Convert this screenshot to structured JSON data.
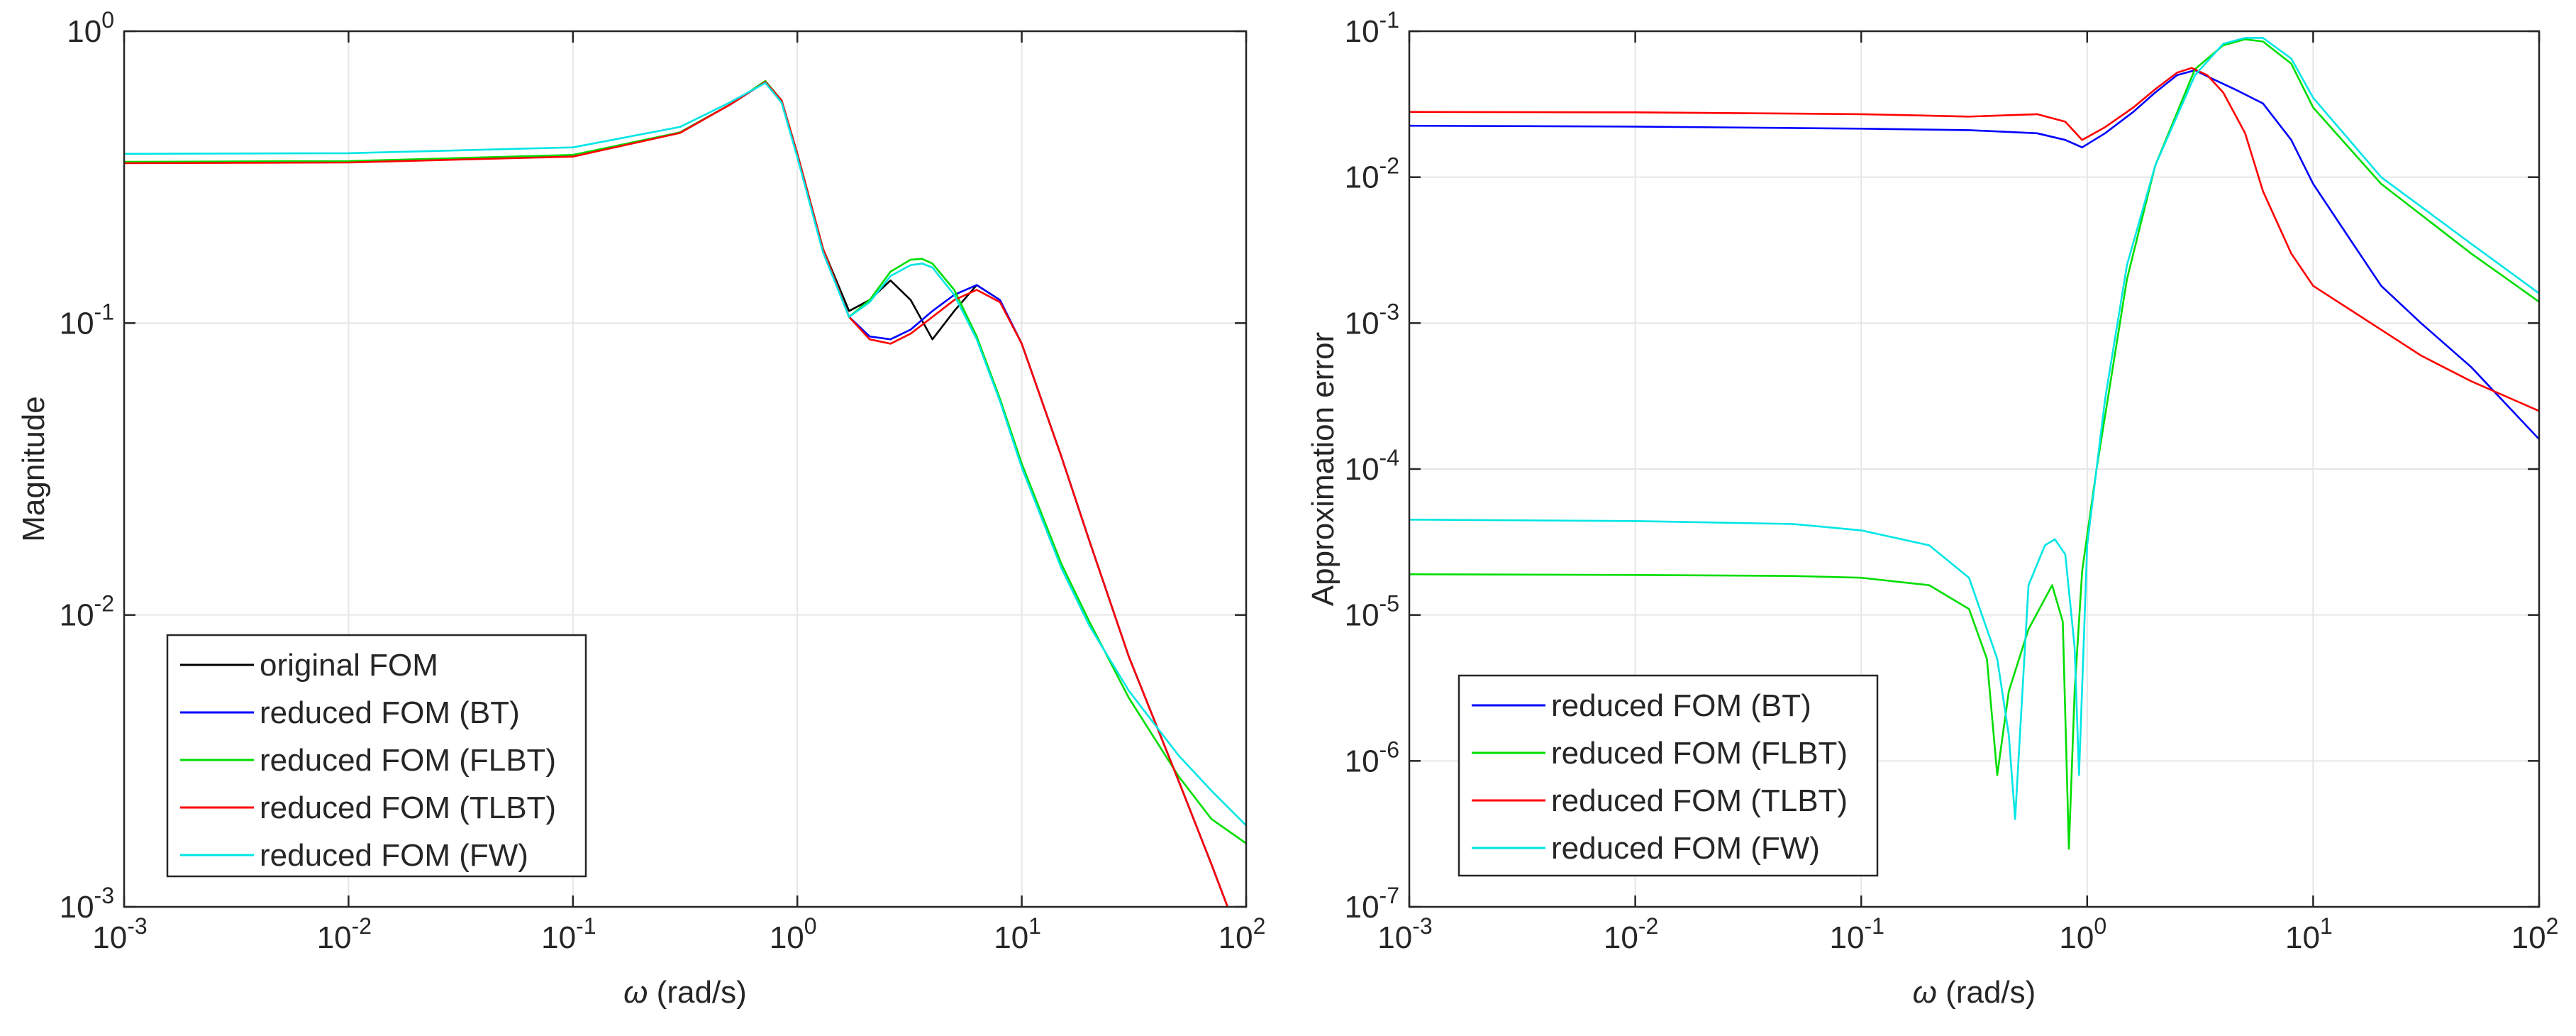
{
  "chart_data": [
    {
      "type": "line",
      "xscale": "log",
      "yscale": "log",
      "xlim": [
        0.001,
        100
      ],
      "ylim": [
        0.001,
        1
      ],
      "xlabel": "ω (rad/s)",
      "ylabel": "Magnitude",
      "x_ticks": [
        0.001,
        0.01,
        0.1,
        1,
        10,
        100
      ],
      "y_ticks": [
        0.001,
        0.01,
        0.1,
        1
      ],
      "x_tick_labels": [
        [
          "10",
          "-3"
        ],
        [
          "10",
          "-2"
        ],
        [
          "10",
          "-1"
        ],
        [
          "10",
          "0"
        ],
        [
          "10",
          "1"
        ],
        [
          "10",
          "2"
        ]
      ],
      "y_tick_labels": [
        [
          "10",
          "-3"
        ],
        [
          "10",
          "-2"
        ],
        [
          "10",
          "-1"
        ],
        [
          "10",
          "0"
        ]
      ],
      "grid": true,
      "legend_position": "bottom-left",
      "series": [
        {
          "name": "original FOM",
          "color": "#000000",
          "x": [
            0.001,
            0.01,
            0.1,
            0.3,
            0.5,
            0.72,
            0.85,
            1.0,
            1.3,
            1.7,
            2.1,
            2.6,
            3.2,
            4.0,
            5.0,
            6.3,
            8.0,
            10,
            15,
            20,
            30,
            50,
            70,
            100
          ],
          "y": [
            0.355,
            0.357,
            0.375,
            0.45,
            0.56,
            0.67,
            0.58,
            0.38,
            0.18,
            0.11,
            0.12,
            0.14,
            0.12,
            0.088,
            0.11,
            0.135,
            0.12,
            0.085,
            0.035,
            0.018,
            0.0072,
            0.0027,
            0.0014,
            0.00068
          ]
        },
        {
          "name": "reduced FOM (BT)",
          "color": "#0000ff",
          "x": [
            0.001,
            0.01,
            0.1,
            0.3,
            0.5,
            0.72,
            0.85,
            1.0,
            1.3,
            1.7,
            2.1,
            2.6,
            3.2,
            4.0,
            5.0,
            6.3,
            8.0,
            10,
            15,
            20,
            30,
            50,
            70,
            100
          ],
          "y": [
            0.355,
            0.357,
            0.375,
            0.45,
            0.56,
            0.67,
            0.58,
            0.38,
            0.18,
            0.105,
            0.09,
            0.088,
            0.095,
            0.11,
            0.125,
            0.135,
            0.12,
            0.085,
            0.035,
            0.018,
            0.0072,
            0.0027,
            0.0014,
            0.00068
          ]
        },
        {
          "name": "reduced FOM (FLBT)",
          "color": "#00dd00",
          "x": [
            0.001,
            0.01,
            0.1,
            0.3,
            0.5,
            0.72,
            0.85,
            1.0,
            1.3,
            1.7,
            2.1,
            2.6,
            3.2,
            3.6,
            4.0,
            5.0,
            6.3,
            8.0,
            10,
            15,
            20,
            30,
            50,
            70,
            100
          ],
          "y": [
            0.357,
            0.359,
            0.377,
            0.45,
            0.56,
            0.675,
            0.58,
            0.38,
            0.18,
            0.105,
            0.12,
            0.15,
            0.165,
            0.166,
            0.16,
            0.13,
            0.09,
            0.055,
            0.033,
            0.015,
            0.0095,
            0.0052,
            0.0028,
            0.002,
            0.00165
          ]
        },
        {
          "name": "reduced FOM (TLBT)",
          "color": "#ff0000",
          "x": [
            0.001,
            0.01,
            0.1,
            0.3,
            0.5,
            0.72,
            0.85,
            1.0,
            1.3,
            1.7,
            2.1,
            2.6,
            3.2,
            4.0,
            5.0,
            6.3,
            8.0,
            10,
            15,
            20,
            30,
            50,
            70,
            100
          ],
          "y": [
            0.353,
            0.355,
            0.372,
            0.448,
            0.56,
            0.67,
            0.58,
            0.38,
            0.18,
            0.105,
            0.088,
            0.085,
            0.092,
            0.105,
            0.12,
            0.13,
            0.118,
            0.085,
            0.035,
            0.018,
            0.0072,
            0.0027,
            0.0014,
            0.00068
          ]
        },
        {
          "name": "reduced FOM (FW)",
          "color": "#00e5e5",
          "x": [
            0.001,
            0.01,
            0.1,
            0.3,
            0.5,
            0.72,
            0.85,
            1.0,
            1.3,
            1.7,
            2.1,
            2.6,
            3.2,
            3.6,
            4.0,
            5.0,
            6.3,
            8.0,
            10,
            15,
            20,
            30,
            50,
            70,
            100
          ],
          "y": [
            0.38,
            0.382,
            0.4,
            0.47,
            0.57,
            0.665,
            0.57,
            0.37,
            0.175,
            0.105,
            0.118,
            0.145,
            0.158,
            0.16,
            0.155,
            0.125,
            0.088,
            0.054,
            0.032,
            0.0145,
            0.0092,
            0.0055,
            0.0033,
            0.0025,
            0.0019
          ]
        }
      ]
    },
    {
      "type": "line",
      "xscale": "log",
      "yscale": "log",
      "xlim": [
        0.001,
        100
      ],
      "ylim": [
        1e-07,
        0.1
      ],
      "xlabel": "ω (rad/s)",
      "ylabel": "Approximation error",
      "x_ticks": [
        0.001,
        0.01,
        0.1,
        1,
        10,
        100
      ],
      "y_ticks": [
        1e-07,
        1e-06,
        1e-05,
        0.0001,
        0.001,
        0.01,
        0.1
      ],
      "x_tick_labels": [
        [
          "10",
          "-3"
        ],
        [
          "10",
          "-2"
        ],
        [
          "10",
          "-1"
        ],
        [
          "10",
          "0"
        ],
        [
          "10",
          "1"
        ],
        [
          "10",
          "2"
        ]
      ],
      "y_tick_labels": [
        [
          "10",
          "-7"
        ],
        [
          "10",
          "-6"
        ],
        [
          "10",
          "-5"
        ],
        [
          "10",
          "-4"
        ],
        [
          "10",
          "-3"
        ],
        [
          "10",
          "-2"
        ],
        [
          "10",
          "-1"
        ]
      ],
      "grid": true,
      "legend_position": "bottom-left",
      "series": [
        {
          "name": "reduced FOM (BT)",
          "color": "#0000ff",
          "x": [
            0.001,
            0.01,
            0.1,
            0.3,
            0.6,
            0.8,
            0.95,
            1.2,
            1.6,
            2.0,
            2.5,
            3.0,
            3.5,
            4.5,
            6.0,
            8.0,
            10,
            15,
            20,
            30,
            50,
            100
          ],
          "y": [
            0.0225,
            0.0222,
            0.0215,
            0.021,
            0.02,
            0.018,
            0.016,
            0.02,
            0.028,
            0.038,
            0.05,
            0.054,
            0.048,
            0.04,
            0.032,
            0.018,
            0.009,
            0.0035,
            0.0018,
            0.001,
            0.0005,
            0.00016
          ]
        },
        {
          "name": "reduced FOM (FLBT)",
          "color": "#00dd00",
          "x": [
            0.001,
            0.01,
            0.05,
            0.1,
            0.2,
            0.3,
            0.36,
            0.4,
            0.45,
            0.55,
            0.7,
            0.78,
            0.83,
            0.88,
            0.95,
            1.1,
            1.5,
            2.0,
            3.0,
            4.0,
            5.0,
            6.0,
            8.0,
            10,
            20,
            50,
            100
          ],
          "y": [
            1.9e-05,
            1.88e-05,
            1.85e-05,
            1.8e-05,
            1.6e-05,
            1.1e-05,
            5e-06,
            8e-07,
            3e-06,
            8e-06,
            1.6e-05,
            9e-06,
            2.5e-07,
            3e-06,
            2e-05,
            0.0001,
            0.002,
            0.012,
            0.055,
            0.08,
            0.088,
            0.085,
            0.06,
            0.03,
            0.009,
            0.003,
            0.0014
          ]
        },
        {
          "name": "reduced FOM (TLBT)",
          "color": "#ff0000",
          "x": [
            0.001,
            0.01,
            0.1,
            0.3,
            0.6,
            0.8,
            0.95,
            1.2,
            1.6,
            2.0,
            2.5,
            2.9,
            3.4,
            4.0,
            5.0,
            6.0,
            8.0,
            10,
            15,
            20,
            30,
            50,
            100
          ],
          "y": [
            0.028,
            0.0278,
            0.027,
            0.026,
            0.027,
            0.024,
            0.018,
            0.022,
            0.03,
            0.04,
            0.052,
            0.056,
            0.05,
            0.038,
            0.02,
            0.008,
            0.003,
            0.0018,
            0.0012,
            0.0009,
            0.0006,
            0.0004,
            0.00025
          ]
        },
        {
          "name": "reduced FOM (FW)",
          "color": "#00e5e5",
          "x": [
            0.001,
            0.01,
            0.05,
            0.1,
            0.2,
            0.3,
            0.4,
            0.45,
            0.48,
            0.55,
            0.65,
            0.72,
            0.8,
            0.88,
            0.92,
            1.0,
            1.2,
            1.5,
            2.0,
            3.0,
            4.0,
            5.0,
            6.0,
            8.0,
            10,
            20,
            50,
            100
          ],
          "y": [
            4.5e-05,
            4.4e-05,
            4.2e-05,
            3.8e-05,
            3e-05,
            1.8e-05,
            5e-06,
            1.5e-06,
            4e-07,
            1.6e-05,
            3e-05,
            3.3e-05,
            2.6e-05,
            6e-06,
            8e-07,
            3e-05,
            0.0003,
            0.0025,
            0.012,
            0.05,
            0.082,
            0.09,
            0.09,
            0.065,
            0.035,
            0.01,
            0.0035,
            0.0016
          ]
        }
      ]
    }
  ]
}
